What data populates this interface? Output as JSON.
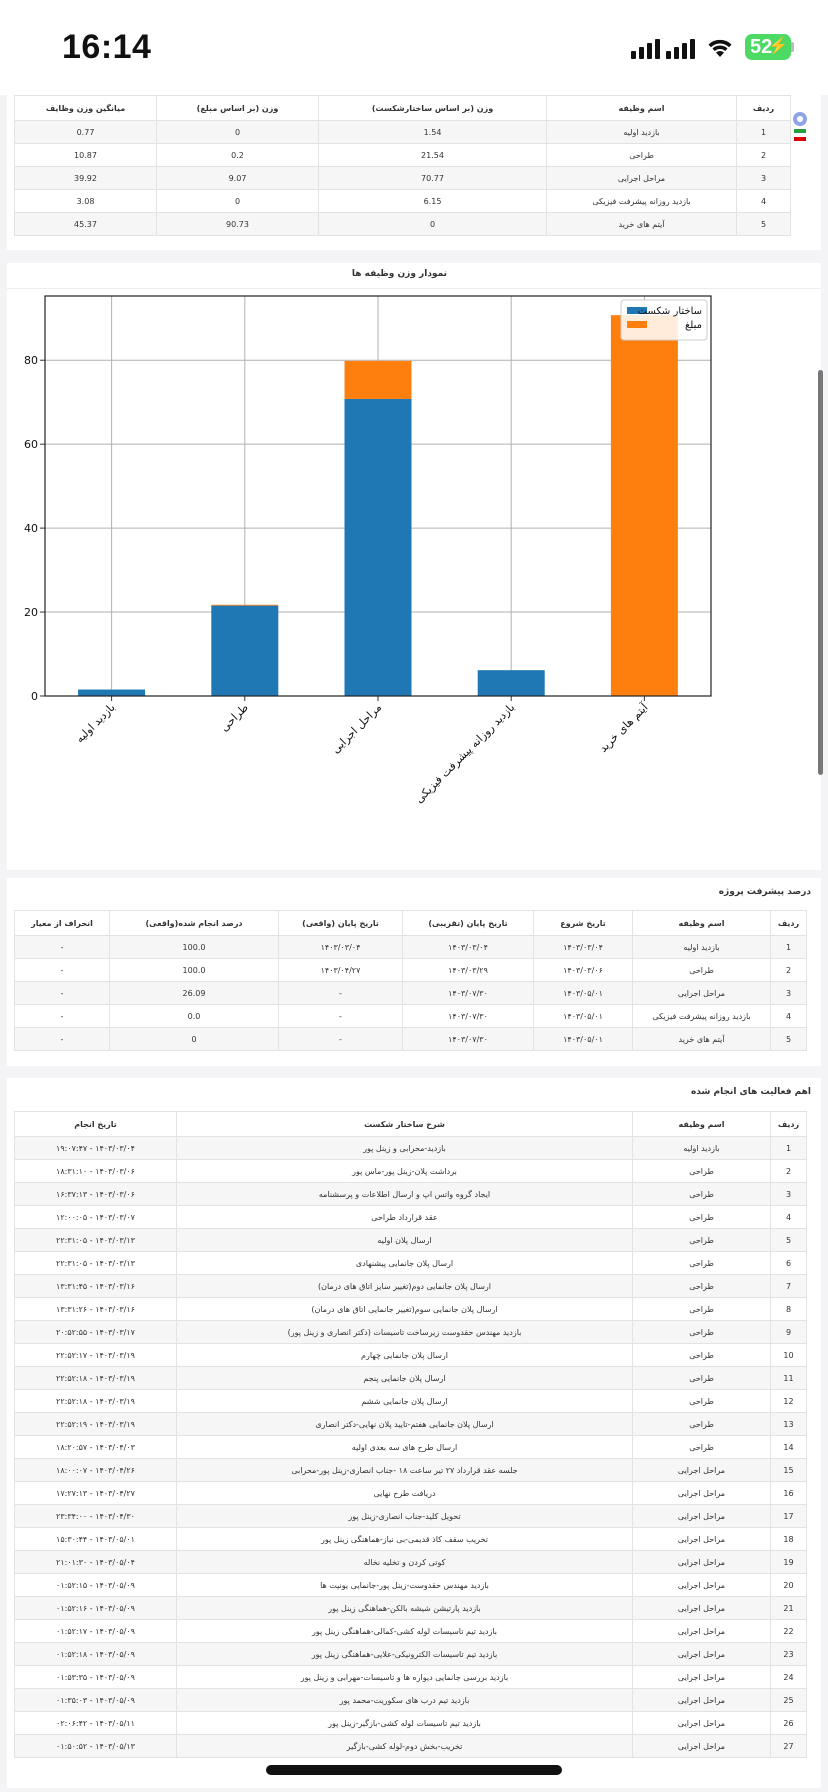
{
  "status_bar": {
    "time": "16:14",
    "battery": "52"
  },
  "weights": {
    "headers": [
      "ردیف",
      "اسم وظیفه",
      "وزن (بر اساس ساختارشکست)",
      "وزن (بر اساس مبلغ)",
      "میانگین وزن وظایف"
    ],
    "rows": [
      [
        "1",
        "بازدید اولیه",
        "1.54",
        "0",
        "0.77"
      ],
      [
        "2",
        "طراحی",
        "21.54",
        "0.2",
        "10.87"
      ],
      [
        "3",
        "مراحل اجرایی",
        "70.77",
        "9.07",
        "39.92"
      ],
      [
        "4",
        "بازدید روزانه پیشرفت فیزیکی",
        "6.15",
        "0",
        "3.08"
      ],
      [
        "5",
        "آیتم های خرید",
        "0",
        "90.73",
        "45.37"
      ]
    ]
  },
  "chart_section": {
    "title": "نمودار وزن وظیفه ها"
  },
  "chart_data": {
    "type": "bar",
    "stacked": true,
    "categories": [
      "بازدید اولیه",
      "طراحی",
      "مراحل اجرایی",
      "بازدید روزانه پیشرفت فیزیکی",
      "آیتم های خرید"
    ],
    "series": [
      {
        "name": "ساختار شکست",
        "color": "#1f77b4",
        "values": [
          1.54,
          21.54,
          70.77,
          6.15,
          0
        ]
      },
      {
        "name": "مبلغ",
        "color": "#ff7f0e",
        "values": [
          0,
          0.2,
          9.07,
          0,
          90.73
        ]
      }
    ],
    "ylim": [
      0,
      95.3
    ],
    "yticks": [
      "0",
      "20",
      "40",
      "60",
      "80"
    ],
    "grid": true,
    "legend": "top-right"
  },
  "progress": {
    "title": "درصد پیشرفت پروژه",
    "headers": [
      "ردیف",
      "اسم وظیفه",
      "تاریخ شروع",
      "تاریخ پایان (تقریبی)",
      "تاریخ پایان (واقعی)",
      "درصد انجام شده(واقعی)",
      "انحراف از معیار"
    ],
    "rows": [
      [
        "1",
        "بازدید اولیه",
        "۱۴۰۳/۰۳/۰۴",
        "۱۴۰۳/۰۳/۰۴",
        "۱۴۰۳/۰۳/۰۴",
        "100.0",
        "-"
      ],
      [
        "2",
        "طراحی",
        "۱۴۰۳/۰۳/۰۶",
        "۱۴۰۳/۰۳/۲۹",
        "۱۴۰۳/۰۴/۲۷",
        "100.0",
        "-"
      ],
      [
        "3",
        "مراحل اجرایی",
        "۱۴۰۳/۰۵/۰۱",
        "۱۴۰۳/۰۷/۳۰",
        "-",
        "26.09",
        "-"
      ],
      [
        "4",
        "بازدید روزانه پیشرفت فیزیکی",
        "۱۴۰۳/۰۵/۰۱",
        "۱۴۰۳/۰۷/۳۰",
        "-",
        "0.0",
        "-"
      ],
      [
        "5",
        "آیتم های خرید",
        "۱۴۰۳/۰۵/۰۱",
        "۱۴۰۳/۰۷/۳۰",
        "-",
        "0",
        "-"
      ]
    ]
  },
  "activities": {
    "title": "اهم فعالیت های انجام شده",
    "headers": [
      "ردیف",
      "اسم وظیفه",
      "شرح ساختار شکست",
      "تاریخ انجام"
    ],
    "rows": [
      [
        "1",
        "بازدید اولیه",
        "بازدید-محرابی و زینل پور",
        "۱۴۰۳/۰۳/۰۴ - ۱۹:۰۷:۴۷"
      ],
      [
        "2",
        "طراحی",
        "برداشت پلان-زینل پور-ماس پور",
        "۱۴۰۳/۰۳/۰۶ - ۱۸:۳۱:۱۰"
      ],
      [
        "3",
        "طراحی",
        "ایجاد گروه واتس اپ و ارسال اطلاعات و پرسشنامه",
        "۱۴۰۳/۰۳/۰۶ - ۱۶:۳۷:۱۳"
      ],
      [
        "4",
        "طراحی",
        "عقد قرارداد طراحی",
        "۱۴۰۳/۰۳/۰۷ - ۱۲:۰۰:۰۵"
      ],
      [
        "5",
        "طراحی",
        "ارسال پلان اولیه",
        "۱۴۰۳/۰۳/۱۳ - ۲۲:۳۱:۰۵"
      ],
      [
        "6",
        "طراحی",
        "ارسال پلان جانمایی پیشنهادی",
        "۱۴۰۳/۰۳/۱۳ - ۲۲:۳۱:۰۵"
      ],
      [
        "7",
        "طراحی",
        "ارسال پلان جانمایی دوم(تغییر سایز اتاق های درمان)",
        "۱۴۰۳/۰۳/۱۶ - ۱۳:۳۱:۴۵"
      ],
      [
        "8",
        "طراحی",
        "ارسال پلان جانمایی سوم(تغییر جانمایی اتاق های درمان)",
        "۱۴۰۳/۰۳/۱۶ - ۱۳:۳۱:۲۶"
      ],
      [
        "9",
        "طراحی",
        "بازدید مهندس حقدوست زیرساخت تاسیسات (دکتر انصاری و زینل پور)",
        "۱۴۰۳/۰۳/۱۷ - ۲۰:۵۲:۵۵"
      ],
      [
        "10",
        "طراحی",
        "ارسال پلان جانمایی چهارم",
        "۱۴۰۳/۰۳/۱۹ - ۲۲:۵۲:۱۷"
      ],
      [
        "11",
        "طراحی",
        "ارسال پلان جانمایی پنجم",
        "۱۴۰۳/۰۳/۱۹ - ۲۲:۵۲:۱۸"
      ],
      [
        "12",
        "طراحی",
        "ارسال پلان جانمایی ششم",
        "۱۴۰۳/۰۳/۱۹ - ۲۲:۵۲:۱۸"
      ],
      [
        "13",
        "طراحی",
        "ارسال پلان جانمایی هفتم-تایید پلان نهایی-دکتر انصاری",
        "۱۴۰۳/۰۳/۱۹ - ۲۲:۵۲:۱۹"
      ],
      [
        "14",
        "طراحی",
        "ارسال طرح های سه بعدی اولیه",
        "۱۴۰۳/۰۴/۰۳ - ۱۸:۲۰:۵۷"
      ],
      [
        "15",
        "مراحل اجرایی",
        "جلسه عقد قرارداد ۲۷ تیر ساعت ۱۸ -جناب انصاری-زینل پور-محرابی",
        "۱۴۰۳/۰۴/۲۶ - ۱۸:۰۰:۰۷"
      ],
      [
        "16",
        "مراحل اجرایی",
        "دریافت طرح نهایی",
        "۱۴۰۳/۰۴/۲۷ - ۱۷:۲۷:۱۳"
      ],
      [
        "17",
        "مراحل اجرایی",
        "تحویل کلید-جناب انصاری-زینل پور",
        "۱۴۰۳/۰۴/۳۰ - ۲۳:۳۴:۰۰"
      ],
      [
        "18",
        "مراحل اجرایی",
        "تخریب سقف کاذ قدیمی-بی نیاز-هماهنگی زینل پور",
        "۱۴۰۳/۰۵/۰۱ - ۱۵:۳۰:۴۴"
      ],
      [
        "19",
        "مراحل اجرایی",
        "کوتی کردن و تخلیه نخاله",
        "۱۴۰۳/۰۵/۰۴ - ۲۱:۰۱:۳۰"
      ],
      [
        "20",
        "مراحل اجرایی",
        "بازدید مهندس حقدوست-زینل پور-جانمایی یونیت ها",
        "۱۴۰۳/۰۵/۰۹ - ۰۱:۵۲:۱۵"
      ],
      [
        "21",
        "مراحل اجرایی",
        "بازدید پارتیشن شیشه بالکن-هماهنگی زینل پور",
        "۱۴۰۳/۰۵/۰۹ - ۰۱:۵۲:۱۶"
      ],
      [
        "22",
        "مراحل اجرایی",
        "بازدید تیم تاسیسات لوله کشی-کمالی-هماهنگی زینل پور",
        "۱۴۰۳/۰۵/۰۹ - ۰۱:۵۲:۱۷"
      ],
      [
        "23",
        "مراحل اجرایی",
        "بازدید تیم تاسیسات الکترونیکی-علایی-هماهنگی زینل پور",
        "۱۴۰۳/۰۵/۰۹ - ۰۱:۵۲:۱۸"
      ],
      [
        "24",
        "مراحل اجرایی",
        "بازدید بررسی جانمایی دیواره ها و تاسیسات-مهرابی و زینل پور",
        "۱۴۰۳/۰۵/۰۹ - ۰۱:۵۳:۳۵"
      ],
      [
        "25",
        "مراحل اجرایی",
        "بازدید تیم درب های سکوریت-محمد پور",
        "۱۴۰۳/۰۵/۰۹ - ۰۱:۳۵:۰۳"
      ],
      [
        "26",
        "مراحل اجرایی",
        "بازدید تیم تاسیسات لوله کشی-بازگیر-زینل پور",
        "۱۴۰۳/۰۵/۱۱ - ۰۲:۰۶:۴۲"
      ],
      [
        "27",
        "مراحل اجرایی",
        "تخریب-بخش دوم-لوله کشی-بازگیر",
        "۱۴۰۳/۰۵/۱۳ - ۰۱:۵۰:۵۲"
      ]
    ]
  },
  "icons": {
    "side_top": "info-icon",
    "side_flag": "iran-flag-icon"
  }
}
